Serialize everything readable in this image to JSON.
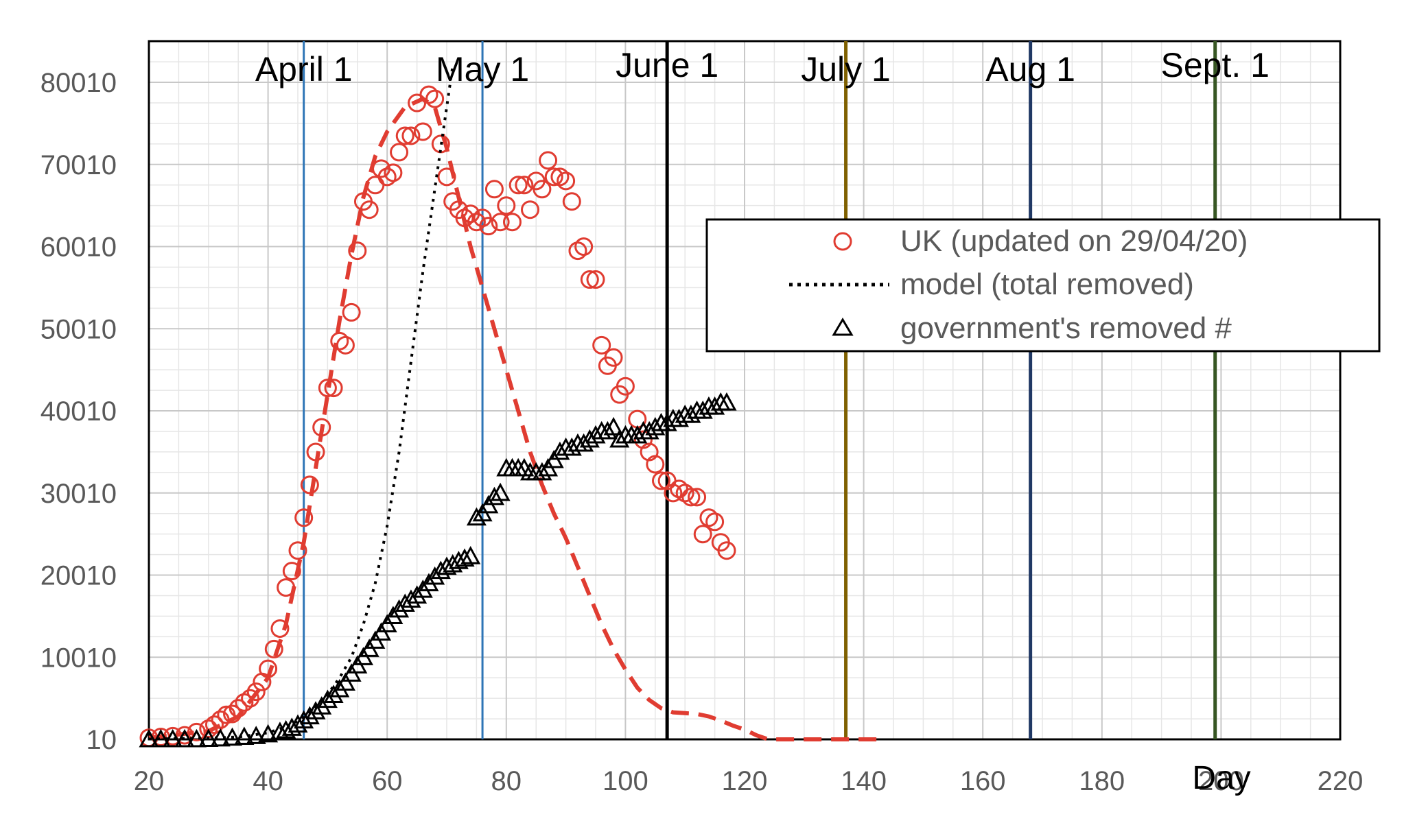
{
  "chart_data": {
    "type": "scatter",
    "title": "",
    "xlabel": "Day",
    "ylabel": "",
    "xlim": [
      20,
      220
    ],
    "ylim": [
      10,
      80010
    ],
    "grid": true,
    "minor_grid": true,
    "x_ticks": [
      "20",
      "40",
      "60",
      "80",
      "100",
      "120",
      "140",
      "160",
      "180",
      "200",
      "220"
    ],
    "y_ticks": [
      "10",
      "10010",
      "20010",
      "30010",
      "40010",
      "50010",
      "60010",
      "70010",
      "80010"
    ],
    "legend_position": "right",
    "legend": [
      {
        "label": "UK (updated on 29/04/20)",
        "marker": "circle",
        "color": "#e03c31"
      },
      {
        "label": "model (total removed)",
        "marker": "dotted-line",
        "color": "#000000"
      },
      {
        "label": "government's removed #",
        "marker": "triangle",
        "color": "#000000"
      }
    ],
    "month_markers": [
      {
        "label": "April 1",
        "day": 46,
        "color": "#2e75b6"
      },
      {
        "label": "May 1",
        "day": 76,
        "color": "#2e75b6"
      },
      {
        "label": "June 1",
        "day": 107,
        "color": "#000000"
      },
      {
        "label": "July 1",
        "day": 137,
        "color": "#7f6000"
      },
      {
        "label": "Aug 1",
        "day": 168,
        "color": "#203864"
      },
      {
        "label": "Sept. 1",
        "day": 199,
        "color": "#375623"
      }
    ],
    "series": [
      {
        "name": "UK (updated on 29/04/20)",
        "kind": "scatter-circle",
        "color": "#e03c31",
        "points": [
          [
            20,
            200
          ],
          [
            22,
            300
          ],
          [
            24,
            400
          ],
          [
            26,
            500
          ],
          [
            28,
            900
          ],
          [
            30,
            1300
          ],
          [
            31,
            1800
          ],
          [
            32,
            2400
          ],
          [
            33,
            3000
          ],
          [
            34,
            3100
          ],
          [
            35,
            3800
          ],
          [
            36,
            4500
          ],
          [
            37,
            5000
          ],
          [
            38,
            5800
          ],
          [
            39,
            7000
          ],
          [
            40,
            8600
          ],
          [
            41,
            11000
          ],
          [
            42,
            13500
          ],
          [
            43,
            18500
          ],
          [
            44,
            20500
          ],
          [
            45,
            23000
          ],
          [
            46,
            27000
          ],
          [
            47,
            31000
          ],
          [
            48,
            35000
          ],
          [
            49,
            38000
          ],
          [
            50,
            42800
          ],
          [
            51,
            42800
          ],
          [
            52,
            48500
          ],
          [
            53,
            48000
          ],
          [
            54,
            52000
          ],
          [
            55,
            59500
          ],
          [
            56,
            65500
          ],
          [
            57,
            64500
          ],
          [
            58,
            67500
          ],
          [
            59,
            69500
          ],
          [
            60,
            68500
          ],
          [
            61,
            69000
          ],
          [
            62,
            71500
          ],
          [
            63,
            73500
          ],
          [
            64,
            73500
          ],
          [
            65,
            77500
          ],
          [
            66,
            74000
          ],
          [
            67,
            78500
          ],
          [
            68,
            78000
          ],
          [
            69,
            72500
          ],
          [
            70,
            68500
          ],
          [
            71,
            65500
          ],
          [
            72,
            64500
          ],
          [
            73,
            63500
          ],
          [
            74,
            64000
          ],
          [
            75,
            63000
          ],
          [
            76,
            63500
          ],
          [
            77,
            62500
          ],
          [
            78,
            67000
          ],
          [
            79,
            63000
          ],
          [
            80,
            65000
          ],
          [
            81,
            63000
          ],
          [
            82,
            67500
          ],
          [
            83,
            67500
          ],
          [
            84,
            64500
          ],
          [
            85,
            68000
          ],
          [
            86,
            67000
          ],
          [
            87,
            70500
          ],
          [
            88,
            68500
          ],
          [
            89,
            68500
          ],
          [
            90,
            68000
          ],
          [
            91,
            65500
          ],
          [
            92,
            59500
          ],
          [
            93,
            60000
          ],
          [
            94,
            56000
          ],
          [
            95,
            56000
          ],
          [
            96,
            48000
          ],
          [
            97,
            45500
          ],
          [
            98,
            46500
          ],
          [
            99,
            42000
          ],
          [
            100,
            43000
          ],
          [
            102,
            39000
          ],
          [
            103,
            36500
          ],
          [
            104,
            35000
          ],
          [
            105,
            33500
          ],
          [
            106,
            31500
          ],
          [
            107,
            31500
          ],
          [
            108,
            30000
          ],
          [
            109,
            30500
          ],
          [
            110,
            30000
          ],
          [
            111,
            29500
          ],
          [
            112,
            29500
          ],
          [
            113,
            25000
          ],
          [
            114,
            27000
          ],
          [
            115,
            26500
          ],
          [
            116,
            24000
          ],
          [
            117,
            23000
          ]
        ]
      },
      {
        "name": "",
        "kind": "dashed-line",
        "color": "#e03c31",
        "points": [
          [
            20,
            200
          ],
          [
            30,
            1000
          ],
          [
            35,
            2800
          ],
          [
            40,
            7500
          ],
          [
            43,
            14000
          ],
          [
            46,
            24000
          ],
          [
            48,
            33000
          ],
          [
            50,
            42000
          ],
          [
            52,
            51000
          ],
          [
            54,
            59000
          ],
          [
            56,
            66000
          ],
          [
            58,
            71000
          ],
          [
            60,
            74000
          ],
          [
            63,
            77000
          ],
          [
            66,
            78000
          ],
          [
            68,
            77000
          ],
          [
            70,
            72000
          ],
          [
            72,
            66000
          ],
          [
            74,
            60000
          ],
          [
            76,
            55000
          ],
          [
            78,
            50000
          ],
          [
            80,
            45000
          ],
          [
            82,
            40000
          ],
          [
            84,
            35000
          ],
          [
            86,
            31000
          ],
          [
            88,
            27500
          ],
          [
            90,
            24500
          ],
          [
            92,
            21000
          ],
          [
            94,
            17500
          ],
          [
            96,
            14000
          ],
          [
            98,
            11000
          ],
          [
            100,
            8500
          ],
          [
            102,
            6300
          ],
          [
            104,
            4800
          ],
          [
            106,
            3800
          ],
          [
            108,
            3300
          ],
          [
            110,
            3200
          ],
          [
            112,
            3100
          ],
          [
            114,
            2800
          ],
          [
            116,
            2300
          ],
          [
            118,
            1700
          ],
          [
            120,
            1200
          ],
          [
            122,
            500
          ],
          [
            124,
            10
          ],
          [
            143,
            10
          ]
        ]
      },
      {
        "name": "model (total removed)",
        "kind": "dotted-line",
        "color": "#000000",
        "points": [
          [
            20,
            50
          ],
          [
            30,
            150
          ],
          [
            35,
            300
          ],
          [
            40,
            800
          ],
          [
            44,
            1800
          ],
          [
            46,
            2800
          ],
          [
            48,
            4000
          ],
          [
            50,
            5500
          ],
          [
            52,
            7500
          ],
          [
            54,
            10000
          ],
          [
            56,
            14000
          ],
          [
            58,
            19000
          ],
          [
            60,
            26000
          ],
          [
            62,
            35000
          ],
          [
            64,
            46000
          ],
          [
            66,
            57000
          ],
          [
            68,
            67000
          ],
          [
            69,
            72000
          ],
          [
            70,
            77000
          ],
          [
            71,
            82000
          ]
        ]
      },
      {
        "name": "government's removed #",
        "kind": "scatter-triangle",
        "color": "#000000",
        "points": [
          [
            20,
            10
          ],
          [
            22,
            10
          ],
          [
            24,
            10
          ],
          [
            26,
            10
          ],
          [
            28,
            10
          ],
          [
            30,
            50
          ],
          [
            32,
            100
          ],
          [
            34,
            200
          ],
          [
            36,
            300
          ],
          [
            38,
            400
          ],
          [
            40,
            600
          ],
          [
            42,
            900
          ],
          [
            43,
            1100
          ],
          [
            44,
            1400
          ],
          [
            45,
            1800
          ],
          [
            46,
            2300
          ],
          [
            47,
            2800
          ],
          [
            48,
            3400
          ],
          [
            49,
            4000
          ],
          [
            50,
            4800
          ],
          [
            51,
            5400
          ],
          [
            52,
            6100
          ],
          [
            53,
            6900
          ],
          [
            54,
            8000
          ],
          [
            55,
            9000
          ],
          [
            56,
            10000
          ],
          [
            57,
            11000
          ],
          [
            58,
            12000
          ],
          [
            59,
            13000
          ],
          [
            60,
            14000
          ],
          [
            61,
            15000
          ],
          [
            62,
            15800
          ],
          [
            63,
            16500
          ],
          [
            64,
            17000
          ],
          [
            65,
            17500
          ],
          [
            66,
            18200
          ],
          [
            67,
            19000
          ],
          [
            68,
            19800
          ],
          [
            69,
            20500
          ],
          [
            70,
            21000
          ],
          [
            71,
            21300
          ],
          [
            72,
            21700
          ],
          [
            73,
            22000
          ],
          [
            74,
            22300
          ],
          [
            75,
            27000
          ],
          [
            76,
            27500
          ],
          [
            77,
            28500
          ],
          [
            78,
            29500
          ],
          [
            79,
            30000
          ],
          [
            80,
            33000
          ],
          [
            81,
            33000
          ],
          [
            82,
            33000
          ],
          [
            83,
            33000
          ],
          [
            84,
            32500
          ],
          [
            85,
            32500
          ],
          [
            86,
            32500
          ],
          [
            87,
            33000
          ],
          [
            88,
            34000
          ],
          [
            89,
            35000
          ],
          [
            90,
            35500
          ],
          [
            91,
            35500
          ],
          [
            92,
            36000
          ],
          [
            93,
            36000
          ],
          [
            94,
            36500
          ],
          [
            95,
            37000
          ],
          [
            96,
            37500
          ],
          [
            97,
            37500
          ],
          [
            98,
            38000
          ],
          [
            99,
            36500
          ],
          [
            100,
            37000
          ],
          [
            101,
            37000
          ],
          [
            102,
            37000
          ],
          [
            103,
            37500
          ],
          [
            104,
            37500
          ],
          [
            105,
            38000
          ],
          [
            106,
            38500
          ],
          [
            107,
            38500
          ],
          [
            108,
            39000
          ],
          [
            109,
            39000
          ],
          [
            110,
            39500
          ],
          [
            111,
            39500
          ],
          [
            112,
            40000
          ],
          [
            113,
            40000
          ],
          [
            114,
            40500
          ],
          [
            115,
            40500
          ],
          [
            116,
            41000
          ],
          [
            117,
            41000
          ]
        ]
      }
    ]
  }
}
